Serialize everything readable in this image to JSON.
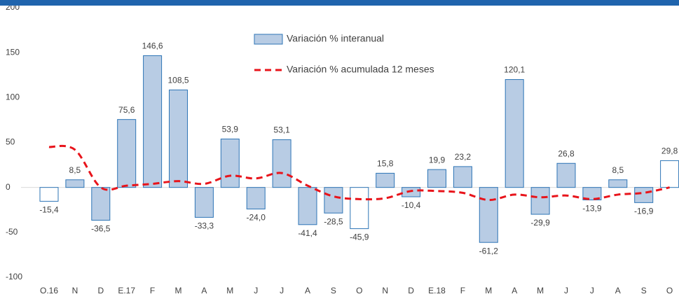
{
  "chart_data": {
    "type": "bar",
    "categories": [
      "O.16",
      "N",
      "D",
      "E.17",
      "F",
      "M",
      "A",
      "M",
      "J",
      "J",
      "A",
      "S",
      "O",
      "N",
      "D",
      "E.18",
      "F",
      "M",
      "A",
      "M",
      "J",
      "J",
      "A",
      "S",
      "O"
    ],
    "series": [
      {
        "name": "Variación % interanual",
        "type": "bar",
        "color": "#b8cce4",
        "edge_color": "#2e75b6",
        "values": [
          -15.4,
          8.5,
          -36.5,
          75.6,
          146.6,
          108.5,
          -33.3,
          53.9,
          -24.0,
          53.1,
          -41.4,
          -28.5,
          -45.9,
          15.8,
          -10.4,
          19.9,
          23.2,
          -61.2,
          120.1,
          -29.9,
          26.8,
          -13.9,
          8.5,
          -16.9,
          29.8
        ],
        "value_labels": [
          "-15,4",
          "8,5",
          "-36,5",
          "75,6",
          "146,6",
          "108,5",
          "-33,3",
          "53,9",
          "-24,0",
          "53,1",
          "-41,4",
          "-28,5",
          "-45,9",
          "15,8",
          "-10,4",
          "19,9",
          "23,2",
          "-61,2",
          "120,1",
          "-29,9",
          "26,8",
          "-13,9",
          "8,5",
          "-16,9",
          "29,8"
        ],
        "bar_fills": [
          "#ffffff",
          "#b8cce4",
          "#b8cce4",
          "#b8cce4",
          "#b8cce4",
          "#b8cce4",
          "#b8cce4",
          "#b8cce4",
          "#b8cce4",
          "#b8cce4",
          "#b8cce4",
          "#b8cce4",
          "#ffffff",
          "#b8cce4",
          "#b8cce4",
          "#b8cce4",
          "#b8cce4",
          "#b8cce4",
          "#b8cce4",
          "#b8cce4",
          "#b8cce4",
          "#b8cce4",
          "#b8cce4",
          "#b8cce4",
          "#ffffff"
        ]
      },
      {
        "name": "Variación % acumulada 12 meses",
        "type": "line",
        "color": "#e8141b",
        "values": [
          45,
          42,
          0,
          2,
          4,
          7,
          4,
          13,
          10,
          16,
          2,
          -10,
          -13,
          -12,
          -4,
          -4,
          -6,
          -14,
          -8,
          -11,
          -9,
          -13,
          -8,
          -6,
          0
        ]
      }
    ],
    "ylim": [
      -100,
      200
    ],
    "yticks": [
      -100,
      -50,
      0,
      50,
      100,
      150,
      200
    ]
  }
}
